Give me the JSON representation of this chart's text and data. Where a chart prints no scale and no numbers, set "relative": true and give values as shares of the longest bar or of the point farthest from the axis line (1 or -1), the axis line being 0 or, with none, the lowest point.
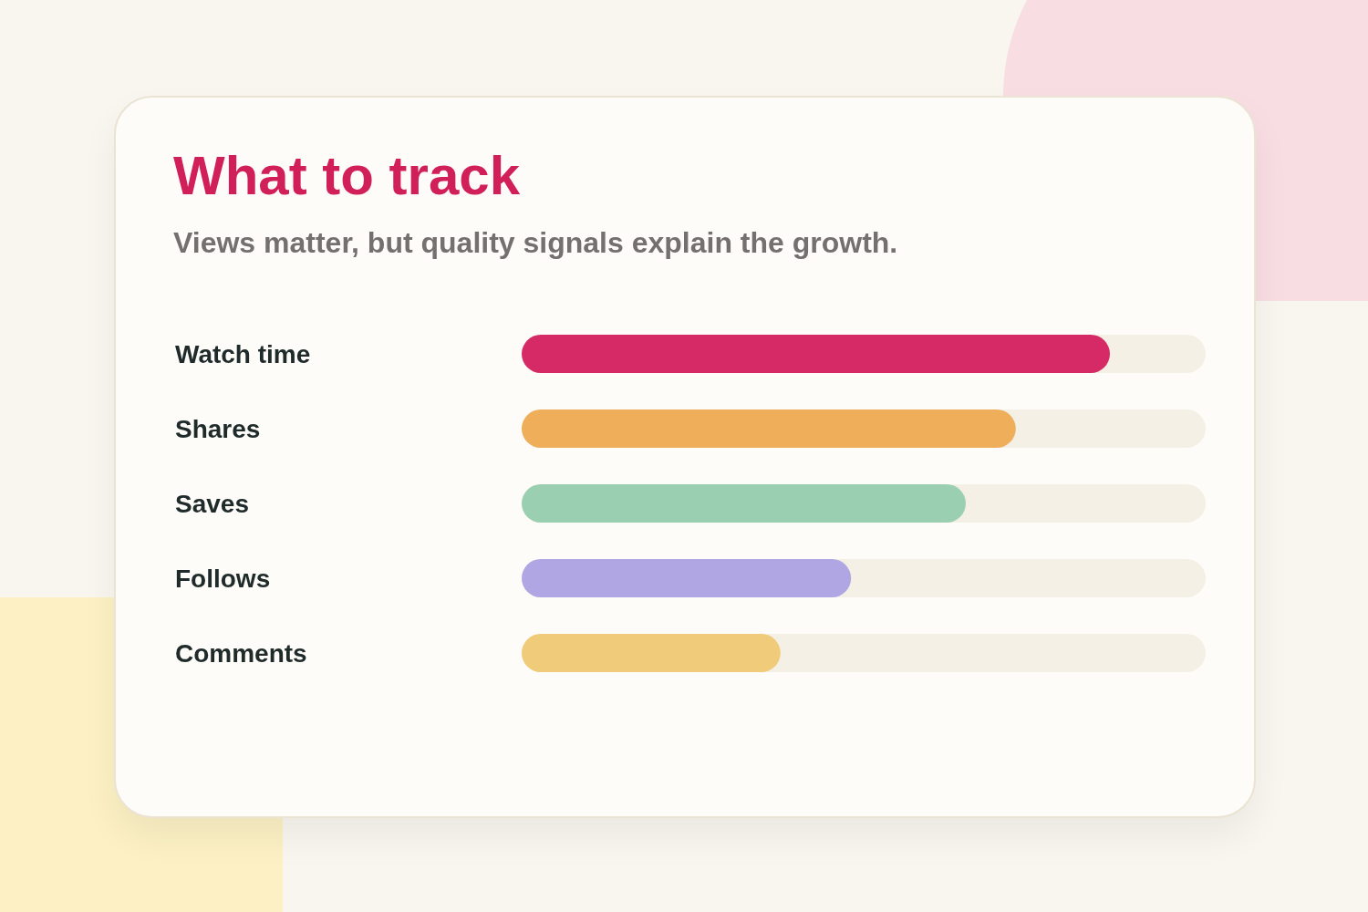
{
  "chart_data": {
    "type": "bar",
    "orientation": "horizontal",
    "relative": true,
    "title": "What to track",
    "subtitle": "Views matter, but quality signals explain the growth.",
    "categories": [
      "Watch time",
      "Shares",
      "Saves",
      "Follows",
      "Comments"
    ],
    "values": [
      1,
      0.84,
      0.755,
      0.56,
      0.44
    ],
    "colors": [
      "#d62a66",
      "#efae5a",
      "#9bcfb1",
      "#b0a6e4",
      "#f0cb79"
    ]
  }
}
